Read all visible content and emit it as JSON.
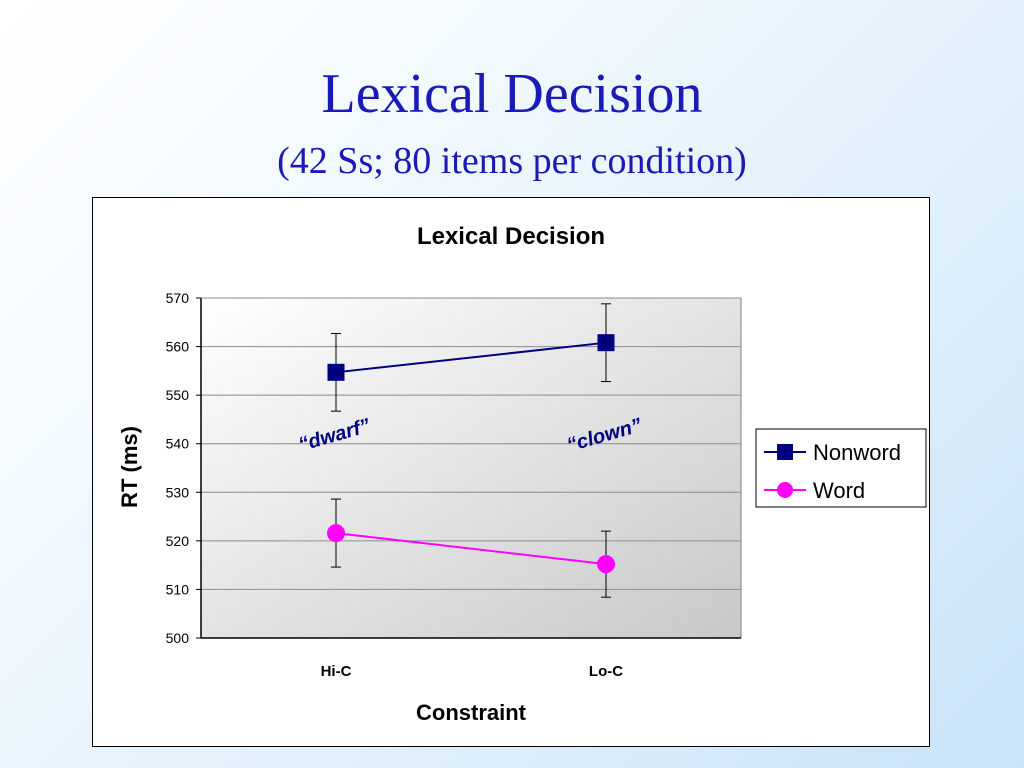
{
  "slide": {
    "title": "Lexical Decision",
    "subtitle": "(42 Ss;  80 items per condition)"
  },
  "chart_data": {
    "type": "line",
    "title": "Lexical Decision",
    "xlabel": "Constraint",
    "ylabel": "RT (ms)",
    "categories": [
      "Hi-C",
      "Lo-C"
    ],
    "ylim": [
      500,
      570
    ],
    "yticks": [
      500,
      510,
      520,
      530,
      540,
      550,
      560,
      570
    ],
    "grid": true,
    "legend_position": "right",
    "series": [
      {
        "name": "Nonword",
        "values": [
          554.7,
          560.8
        ],
        "error": [
          8.0,
          8.0
        ],
        "color": "#000080",
        "marker": "square"
      },
      {
        "name": "Word",
        "values": [
          521.6,
          515.2
        ],
        "error": [
          7.0,
          6.8
        ],
        "color": "#ff00ff",
        "marker": "circle"
      }
    ],
    "annotations": [
      {
        "text": "“dwarf”",
        "category": "Hi-C",
        "y": 540.5,
        "color": "#000080"
      },
      {
        "text": "“clown”",
        "category": "Lo-C",
        "y": 540.5,
        "color": "#000080"
      }
    ]
  }
}
